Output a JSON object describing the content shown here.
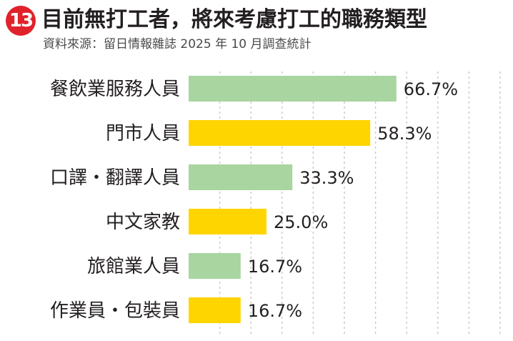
{
  "header": {
    "badge_number": "13",
    "title": "目前無打工者，將來考慮打工的職務類型",
    "source": "資料來源：留日情報雜誌 2025 年 10 月調查統計"
  },
  "colors": {
    "badge": "#e0222b",
    "green": "#a8d5a0",
    "yellow": "#ffd500",
    "gridline": "#c8c8c8"
  },
  "chart_data": {
    "type": "bar",
    "orientation": "horizontal",
    "title": "目前無打工者，將來考慮打工的職務類型",
    "subtitle": "資料來源：留日情報雜誌 2025 年 10 月調查統計",
    "categories": [
      "餐飲業服務人員",
      "門市人員",
      "口譯・翻譯人員",
      "中文家教",
      "旅館業人員",
      "作業員・包裝員"
    ],
    "values": [
      66.7,
      58.3,
      33.3,
      25.0,
      16.7,
      16.7
    ],
    "value_labels": [
      "66.7%",
      "58.3%",
      "33.3%",
      "25.0%",
      "16.7%",
      "16.7%"
    ],
    "bar_colors": [
      "#a8d5a0",
      "#ffd500",
      "#a8d5a0",
      "#ffd500",
      "#a8d5a0",
      "#ffd500"
    ],
    "unit": "%",
    "xlim": [
      0,
      100
    ],
    "gridlines": [
      10,
      20,
      30,
      40,
      50,
      60,
      70,
      80,
      90,
      100
    ],
    "grid": true,
    "legend": false
  }
}
